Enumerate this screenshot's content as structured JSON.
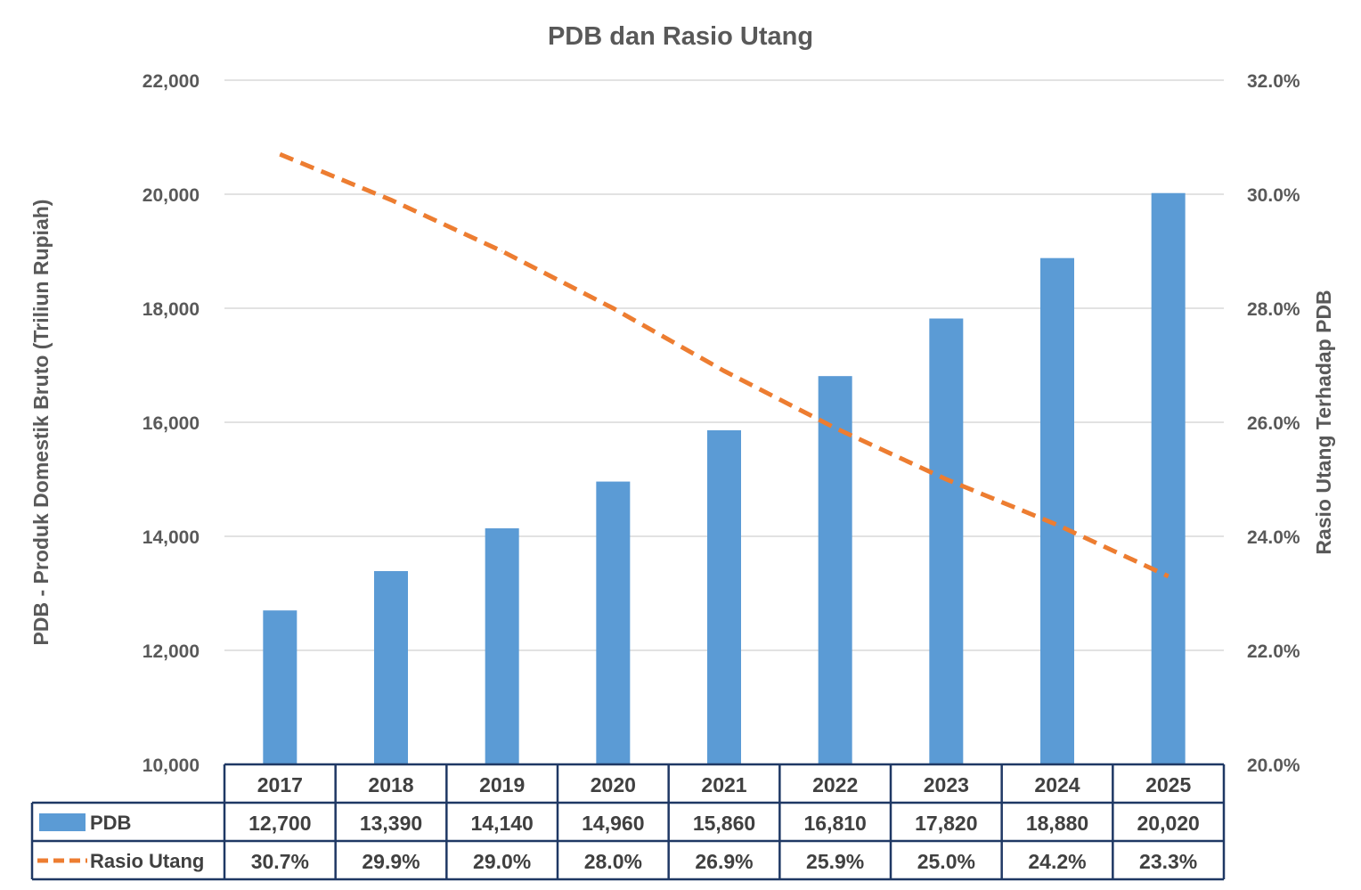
{
  "chart_data": {
    "type": "bar",
    "title": "PDB dan Rasio Utang",
    "ylabel_left": "PDB - Produk Domestik Bruto (Triliun Rupiah)",
    "ylabel_right": "Rasio Utang Terhadap PDB",
    "categories": [
      "2017",
      "2018",
      "2019",
      "2020",
      "2021",
      "2022",
      "2023",
      "2024",
      "2025"
    ],
    "y_left_ticks": [
      "10,000",
      "12,000",
      "14,000",
      "16,000",
      "18,000",
      "20,000",
      "22,000"
    ],
    "y_left_range": [
      10000,
      22000
    ],
    "y_right_ticks": [
      "20.0%",
      "22.0%",
      "24.0%",
      "26.0%",
      "28.0%",
      "30.0%",
      "32.0%"
    ],
    "y_right_range": [
      20.0,
      32.0
    ],
    "grid": true,
    "legend": "data-table",
    "series": [
      {
        "name": "PDB",
        "type": "bar",
        "axis": "left",
        "color": "#5B9BD5",
        "values": [
          12700,
          13390,
          14140,
          14960,
          15860,
          16810,
          17820,
          18880,
          20020
        ],
        "labels": [
          "12,700",
          "13,390",
          "14,140",
          "14,960",
          "15,860",
          "16,810",
          "17,820",
          "18,880",
          "20,020"
        ]
      },
      {
        "name": "Rasio Utang",
        "type": "line",
        "style": "dashed",
        "axis": "right",
        "color": "#ED7D31",
        "values": [
          30.7,
          29.9,
          29.0,
          28.0,
          26.9,
          25.9,
          25.0,
          24.2,
          23.3
        ],
        "labels": [
          "30.7%",
          "29.9%",
          "29.0%",
          "28.0%",
          "26.9%",
          "25.9%",
          "25.0%",
          "24.2%",
          "23.3%"
        ]
      }
    ],
    "colors": {
      "text": "#595959",
      "grid": "#D9D9D9",
      "table_border": "#1F3864",
      "table_text": "#404040"
    }
  }
}
